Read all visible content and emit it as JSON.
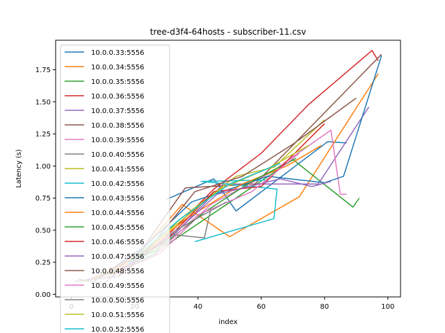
{
  "chart_data": {
    "type": "line",
    "title": "tree-d3f4-64hosts - subscriber-11.csv",
    "xlabel": "index",
    "ylabel": "Latency (s)",
    "xlim": [
      -5,
      104
    ],
    "ylim": [
      -0.02,
      1.98
    ],
    "xticks": [
      0,
      20,
      40,
      60,
      80,
      100
    ],
    "yticks": [
      0.0,
      0.25,
      0.5,
      0.75,
      1.0,
      1.25,
      1.5,
      1.75
    ],
    "ytick_labels": [
      "0.00",
      "0.25",
      "0.50",
      "0.75",
      "1.00",
      "1.25",
      "1.50",
      "1.75"
    ],
    "legend_position": "upper-left",
    "series": [
      {
        "name": "10.0.0.33:5556",
        "color": "#1f77b4",
        "x": [
          30,
          45,
          52,
          81,
          87
        ],
        "y": [
          0.74,
          0.9,
          0.65,
          1.19,
          1.18
        ]
      },
      {
        "name": "10.0.0.34:5556",
        "color": "#ff7f0e",
        "x": [
          5,
          20,
          35,
          50,
          72,
          97
        ],
        "y": [
          0.1,
          0.28,
          0.7,
          0.45,
          0.76,
          1.72
        ]
      },
      {
        "name": "10.0.0.35:5556",
        "color": "#2ca02c",
        "x": [
          10,
          25,
          40,
          55,
          70,
          89,
          91
        ],
        "y": [
          0.12,
          0.3,
          0.55,
          0.8,
          1.05,
          0.68,
          0.75
        ]
      },
      {
        "name": "10.0.0.36:5556",
        "color": "#d62728",
        "x": [
          15,
          30,
          45,
          60,
          75,
          95,
          97
        ],
        "y": [
          0.15,
          0.45,
          0.82,
          1.1,
          1.48,
          1.9,
          1.82
        ]
      },
      {
        "name": "10.0.0.37:5556",
        "color": "#9467bd",
        "x": [
          3,
          18,
          33,
          48,
          78,
          94
        ],
        "y": [
          0.1,
          0.22,
          0.48,
          0.86,
          0.86,
          1.46
        ]
      },
      {
        "name": "10.0.0.38:5556",
        "color": "#8c564b",
        "x": [
          7,
          22,
          36,
          58,
          98
        ],
        "y": [
          0.1,
          0.34,
          0.83,
          0.86,
          1.87
        ]
      },
      {
        "name": "10.0.0.39:5556",
        "color": "#e377c2",
        "x": [
          11,
          28,
          44,
          63,
          82,
          85,
          87
        ],
        "y": [
          0.13,
          0.32,
          0.7,
          0.95,
          1.28,
          0.78,
          0.78
        ]
      },
      {
        "name": "10.0.0.40:5556",
        "color": "#7f7f7f",
        "x": [
          2,
          10,
          30,
          42,
          44
        ],
        "y": [
          0.12,
          0.08,
          0.47,
          0.44,
          0.66
        ]
      },
      {
        "name": "10.0.0.41:5556",
        "color": "#bcbd22",
        "x": [
          4,
          19,
          34,
          52,
          64,
          80
        ],
        "y": [
          0.1,
          0.21,
          0.58,
          0.92,
          0.99,
          1.36
        ]
      },
      {
        "name": "10.0.0.42:5556",
        "color": "#17becf",
        "x": [
          39,
          64,
          65,
          41,
          62
        ],
        "y": [
          0.41,
          0.59,
          0.82,
          0.88,
          0.89
        ]
      },
      {
        "name": "10.0.0.43:5556",
        "color": "#1f77b4",
        "x": [
          8,
          23,
          38,
          62,
          80,
          86,
          98
        ],
        "y": [
          0.12,
          0.37,
          0.72,
          0.92,
          0.87,
          0.92,
          1.86
        ]
      },
      {
        "name": "10.0.0.44:5556",
        "color": "#ff7f0e",
        "x": [
          6,
          21,
          37,
          54,
          68,
          79
        ],
        "y": [
          0.11,
          0.3,
          0.6,
          0.86,
          1.0,
          1.16
        ]
      },
      {
        "name": "10.0.0.45:5556",
        "color": "#2ca02c",
        "x": [
          12,
          27,
          42,
          57,
          71
        ],
        "y": [
          0.16,
          0.35,
          0.64,
          0.88,
          1.06
        ]
      },
      {
        "name": "10.0.0.46:5556",
        "color": "#d62728",
        "x": [
          14,
          29,
          45,
          60,
          80
        ],
        "y": [
          0.18,
          0.4,
          0.8,
          0.84,
          1.33
        ]
      },
      {
        "name": "10.0.0.47:5556",
        "color": "#9467bd",
        "x": [
          16,
          31,
          46,
          66,
          76,
          82
        ],
        "y": [
          0.2,
          0.44,
          0.78,
          0.9,
          0.84,
          0.88
        ]
      },
      {
        "name": "10.0.0.48:5556",
        "color": "#8c564b",
        "x": [
          9,
          24,
          39,
          54,
          70,
          90
        ],
        "y": [
          0.13,
          0.34,
          0.8,
          0.92,
          1.17,
          1.53
        ]
      },
      {
        "name": "10.0.0.49:5556",
        "color": "#e377c2",
        "x": [
          13,
          26,
          40,
          57,
          72
        ],
        "y": [
          0.15,
          0.3,
          0.62,
          0.8,
          1.1
        ]
      },
      {
        "name": "10.0.0.50:5556",
        "color": "#7f7f7f",
        "x": [
          1,
          15,
          33,
          49
        ],
        "y": [
          0.1,
          0.14,
          0.5,
          0.72
        ]
      },
      {
        "name": "10.0.0.51:5556",
        "color": "#bcbd22",
        "x": [
          17,
          32,
          47,
          62,
          75
        ],
        "y": [
          0.22,
          0.52,
          0.82,
          0.98,
          1.16
        ]
      },
      {
        "name": "10.0.0.52:5556",
        "color": "#17becf",
        "x": [
          18,
          34,
          50,
          66
        ],
        "y": [
          0.24,
          0.58,
          0.86,
          1.02
        ]
      }
    ]
  }
}
